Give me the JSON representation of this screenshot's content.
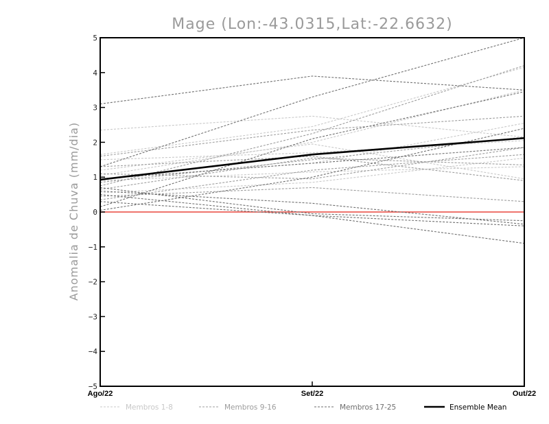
{
  "chart_data": {
    "type": "line",
    "title": "Mage (Lon:-43.0315,Lat:-22.6632)",
    "xlabel": "",
    "ylabel": "Anomalia de Chuva (mm/dia)",
    "categories": [
      "Ago/22",
      "Set/22",
      "Out/22"
    ],
    "ylim": [
      -5,
      5
    ],
    "yticks": [
      -5,
      -4,
      -3,
      -2,
      -1,
      0,
      1,
      2,
      3,
      4,
      5
    ],
    "reference_line": {
      "value": 0,
      "color": "#e8453c"
    },
    "colors": {
      "group1": "#c8c8c8",
      "group2": "#9c9c9c",
      "group3": "#6e6e6e",
      "mean": "#000000"
    },
    "legend": [
      {
        "group": "group1",
        "label": "Membros 1-8"
      },
      {
        "group": "group2",
        "label": "Membros 9-16"
      },
      {
        "group": "group3",
        "label": "Membros 17-25"
      },
      {
        "group": "mean",
        "label": "Ensemble Mean"
      }
    ],
    "series": [
      {
        "name": "Membro 1",
        "group": "group1",
        "values": [
          2.35,
          2.75,
          2.15
        ]
      },
      {
        "name": "Membro 2",
        "group": "group1",
        "values": [
          1.65,
          2.45,
          4.15
        ]
      },
      {
        "name": "Membro 3",
        "group": "group1",
        "values": [
          1.2,
          1.95,
          0.95
        ]
      },
      {
        "name": "Membro 4",
        "group": "group1",
        "values": [
          0.9,
          1.15,
          1.3
        ]
      },
      {
        "name": "Membro 5",
        "group": "group1",
        "values": [
          1.05,
          2.0,
          3.5
        ]
      },
      {
        "name": "Membro 6",
        "group": "group1",
        "values": [
          0.55,
          0.85,
          1.55
        ]
      },
      {
        "name": "Membro 7",
        "group": "group1",
        "values": [
          1.5,
          1.7,
          2.05
        ]
      },
      {
        "name": "Membro 8",
        "group": "group1",
        "values": [
          0.95,
          1.4,
          2.55
        ]
      },
      {
        "name": "Membro 9",
        "group": "group2",
        "values": [
          0.75,
          2.25,
          4.2
        ]
      },
      {
        "name": "Membro 10",
        "group": "group2",
        "values": [
          1.6,
          2.35,
          2.75
        ]
      },
      {
        "name": "Membro 11",
        "group": "group2",
        "values": [
          0.65,
          1.55,
          1.35
        ]
      },
      {
        "name": "Membro 12",
        "group": "group2",
        "values": [
          1.1,
          0.95,
          1.85
        ]
      },
      {
        "name": "Membro 13",
        "group": "group2",
        "values": [
          0.45,
          0.7,
          0.3
        ]
      },
      {
        "name": "Membro 14",
        "group": "group2",
        "values": [
          1.3,
          1.6,
          0.9
        ]
      },
      {
        "name": "Membro 15",
        "group": "group2",
        "values": [
          0.35,
          1.2,
          1.65
        ]
      },
      {
        "name": "Membro 16",
        "group": "group2",
        "values": [
          0.85,
          1.5,
          2.15
        ]
      },
      {
        "name": "Membro 17",
        "group": "group3",
        "values": [
          3.1,
          3.9,
          3.5
        ]
      },
      {
        "name": "Membro 18",
        "group": "group3",
        "values": [
          1.3,
          3.3,
          5.0
        ]
      },
      {
        "name": "Membro 19",
        "group": "group3",
        "values": [
          0.6,
          0.25,
          -0.35
        ]
      },
      {
        "name": "Membro 20",
        "group": "group3",
        "values": [
          0.5,
          -0.1,
          -0.9
        ]
      },
      {
        "name": "Membro 21",
        "group": "group3",
        "values": [
          0.15,
          2.1,
          3.45
        ]
      },
      {
        "name": "Membro 22",
        "group": "group3",
        "values": [
          0.7,
          -0.05,
          -0.25
        ]
      },
      {
        "name": "Membro 23",
        "group": "group3",
        "values": [
          0.05,
          1.0,
          2.4
        ]
      },
      {
        "name": "Membro 24",
        "group": "group3",
        "values": [
          0.95,
          1.4,
          1.85
        ]
      },
      {
        "name": "Membro 25",
        "group": "group3",
        "values": [
          0.3,
          -0.1,
          -0.4
        ]
      },
      {
        "name": "Ensemble Mean",
        "group": "mean",
        "values": [
          0.93,
          1.65,
          2.12
        ]
      }
    ]
  }
}
